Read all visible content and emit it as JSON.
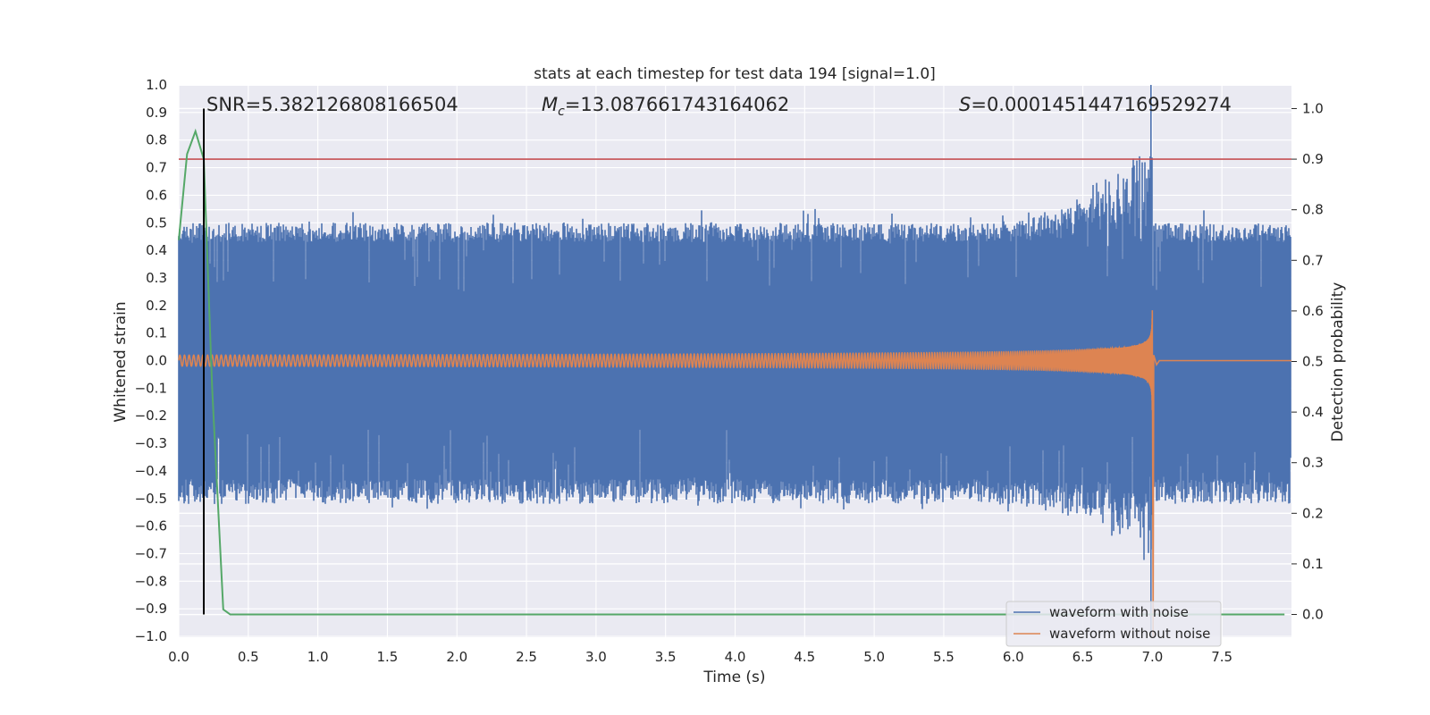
{
  "chart_data": {
    "type": "line",
    "title": "stats at each timestep for test data 194 [signal=1.0]",
    "xlabel": "Time (s)",
    "ylabel": "Whitened strain",
    "ylabel_right": "Detection probability",
    "xlim": [
      0.0,
      8.0
    ],
    "ylim": [
      -1.0,
      1.0
    ],
    "ylim_right": [
      -0.045,
      1.045
    ],
    "x_ticks": [
      "0.0",
      "0.5",
      "1.0",
      "1.5",
      "2.0",
      "2.5",
      "3.0",
      "3.5",
      "4.0",
      "4.5",
      "5.0",
      "5.5",
      "6.0",
      "6.5",
      "7.0",
      "7.5"
    ],
    "y_ticks": [
      "1.0",
      "0.9",
      "0.8",
      "0.7",
      "0.6",
      "0.5",
      "0.4",
      "0.3",
      "0.2",
      "0.1",
      "0.0",
      "−0.1",
      "−0.2",
      "−0.3",
      "−0.4",
      "−0.5",
      "−0.6",
      "−0.7",
      "−0.8",
      "−0.9",
      "−1.0"
    ],
    "y_ticks_right": [
      "1.0",
      "0.9",
      "0.8",
      "0.7",
      "0.6",
      "0.5",
      "0.4",
      "0.3",
      "0.2",
      "0.1",
      "0.0"
    ],
    "grid": true,
    "legend_position": "lower right",
    "annotations": {
      "snr": "SNR=5.382126808166504",
      "mc_symbol": "M",
      "mc_sub": "c",
      "mc_value": "=13.087661743164062",
      "s_symbol": "S",
      "s_value": "=0.0001451447169529274"
    },
    "series": [
      {
        "name": "waveform with noise",
        "color": "#4c72b0",
        "description_values": {
          "noise_band_typical": [
            -0.45,
            0.45
          ],
          "noise_peaks": [
            -0.55,
            0.52
          ],
          "spike_time": 6.99,
          "spike_range": [
            -1.0,
            1.0
          ]
        }
      },
      {
        "name": "waveform without noise",
        "color": "#dd8452",
        "description_values": {
          "start_amplitude": 0.02,
          "merger_time": 7.0,
          "peak_amplitude": 0.85,
          "post_merger_value": 0.0
        }
      },
      {
        "name": "",
        "color": "#55a868",
        "axis": "right",
        "x": [
          0.0,
          0.06,
          0.12,
          0.18,
          0.24,
          0.32,
          0.37,
          7.95
        ],
        "y": [
          0.74,
          0.91,
          0.955,
          0.9,
          0.45,
          0.01,
          0.0,
          0.0
        ]
      }
    ],
    "threshold_line": {
      "axis": "right",
      "y": 0.9,
      "color": "#c44e52"
    },
    "vertical_line": {
      "x": 0.18,
      "y_range_right": [
        0.0,
        1.0
      ],
      "color": "#000000"
    }
  }
}
